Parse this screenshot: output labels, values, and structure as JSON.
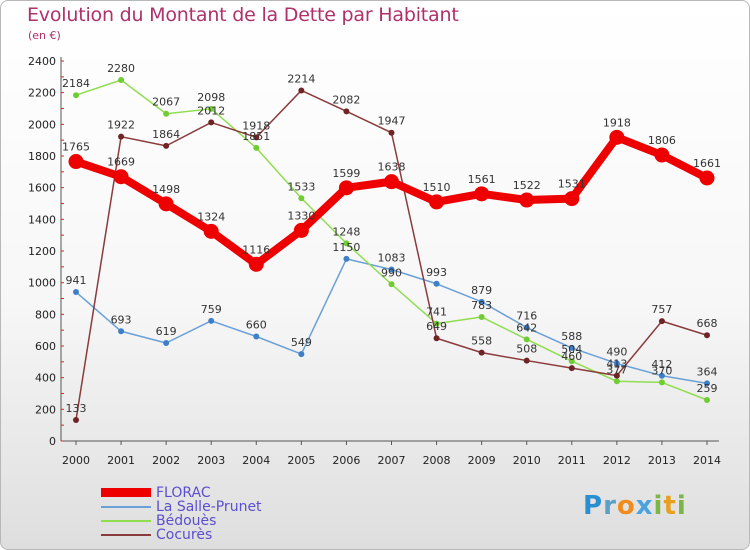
{
  "title": "Evolution du Montant de la Dette par Habitant",
  "subtitle": "(en €)",
  "logo": {
    "letters": [
      {
        "ch": "P",
        "color": "#2a8fd0"
      },
      {
        "ch": "r",
        "color": "#5aa0c8"
      },
      {
        "ch": "o",
        "color": "#f08c1e"
      },
      {
        "ch": "x",
        "color": "#4aa3df"
      },
      {
        "ch": "i",
        "color": "#7ab648"
      },
      {
        "ch": "t",
        "color": "#e8a020"
      },
      {
        "ch": "i",
        "color": "#7ab648"
      }
    ]
  },
  "chart_data": {
    "type": "line",
    "title": "Evolution du Montant de la Dette par Habitant",
    "subtitle": "(en €)",
    "categories": [
      "2000",
      "2001",
      "2002",
      "2003",
      "2004",
      "2005",
      "2006",
      "2007",
      "2008",
      "2009",
      "2010",
      "2011",
      "2012",
      "2013",
      "2014"
    ],
    "ylim": [
      0,
      2400
    ],
    "yticks": [
      0,
      200,
      400,
      600,
      800,
      1000,
      1200,
      1400,
      1600,
      1800,
      2000,
      2200,
      2400
    ],
    "grid": false,
    "legend_position": "bottom-left",
    "series": [
      {
        "name": "FLORAC",
        "color": "#ee0000",
        "dot": "#ee0000",
        "width": 8,
        "marker": 7,
        "values": [
          1765,
          1669,
          1498,
          1324,
          1116,
          1330,
          1599,
          1638,
          1510,
          1561,
          1522,
          1531,
          1918,
          1806,
          1661
        ]
      },
      {
        "name": "La Salle-Prunet",
        "color": "#6aa0d8",
        "dot": "#3f7fc8",
        "width": 1.5,
        "marker": 3,
        "values": [
          941,
          693,
          619,
          759,
          660,
          549,
          1150,
          1083,
          993,
          879,
          716,
          588,
          490,
          412,
          364
        ]
      },
      {
        "name": "Bédouès",
        "color": "#90dd50",
        "dot": "#6fcc33",
        "width": 1.5,
        "marker": 3,
        "values": [
          2184,
          2280,
          2067,
          2098,
          1851,
          1533,
          1248,
          990,
          741,
          783,
          642,
          504,
          377,
          370,
          259
        ]
      },
      {
        "name": "Cocurès",
        "color": "#8a3b3b",
        "dot": "#6e2424",
        "width": 1.5,
        "marker": 3,
        "values": [
          133,
          1922,
          1864,
          2012,
          1918,
          2214,
          2082,
          1947,
          649,
          558,
          508,
          460,
          413,
          757,
          668
        ]
      }
    ]
  }
}
